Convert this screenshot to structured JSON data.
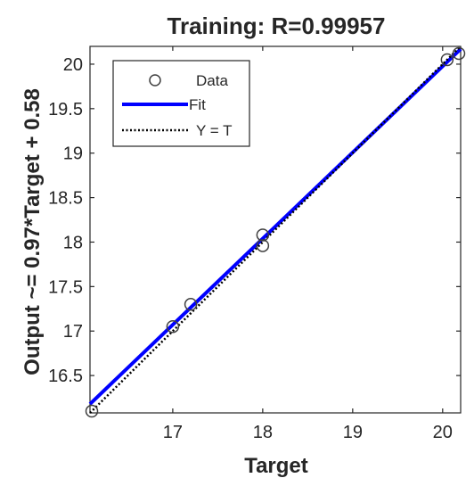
{
  "chart_data": {
    "type": "scatter",
    "title": "Training: R=0.99957",
    "xlabel": "Target",
    "ylabel": "Output ~= 0.97*Target + 0.58",
    "xlim": [
      16.08,
      20.2
    ],
    "ylim": [
      16.08,
      20.2
    ],
    "xticks": [
      17,
      18,
      19,
      20
    ],
    "yticks": [
      16.5,
      17,
      17.5,
      18,
      18.5,
      19,
      19.5,
      20
    ],
    "grid": false,
    "legend_position": "top-left",
    "series": [
      {
        "name": "Data",
        "kind": "scatter",
        "marker": "open-circle",
        "color": "#404040",
        "x": [
          16.1,
          17.0,
          17.2,
          18.0,
          18.0,
          20.05,
          20.18
        ],
        "y": [
          16.1,
          17.05,
          17.3,
          18.08,
          17.96,
          20.05,
          20.12
        ]
      },
      {
        "name": "Fit",
        "kind": "line",
        "color": "#0000ff",
        "x": [
          16.08,
          20.2
        ],
        "y": [
          16.18,
          20.17
        ]
      },
      {
        "name": "Y = T",
        "kind": "line",
        "style": "dotted",
        "color": "#000000",
        "x": [
          16.08,
          20.2
        ],
        "y": [
          16.08,
          20.2
        ]
      }
    ]
  }
}
